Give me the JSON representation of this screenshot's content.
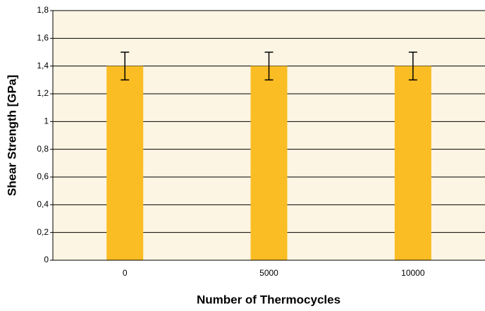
{
  "chart_data": {
    "type": "bar",
    "xlabel": "Number of Thermocycles",
    "ylabel": "Shear Strength [GPa]",
    "categories": [
      "0",
      "5000",
      "10000"
    ],
    "values": [
      1.4,
      1.4,
      1.4
    ],
    "errors": [
      0.1,
      0.1,
      0.1
    ],
    "color": "#fbbd24",
    "ylim": [
      0,
      1.8
    ],
    "yticks": [
      0,
      {
        "value": 0.2,
        "label": "0,2"
      },
      {
        "value": 0.4,
        "label": "0,4"
      },
      {
        "value": 0.6,
        "label": "0,6"
      },
      {
        "value": 0.8,
        "label": "0,8"
      },
      1,
      {
        "value": 1.2,
        "label": "1,2"
      },
      {
        "value": 1.4,
        "label": "1,4"
      },
      {
        "value": 1.6,
        "label": "1,6"
      },
      {
        "value": 1.8,
        "label": "1,8"
      }
    ],
    "grid": true
  }
}
